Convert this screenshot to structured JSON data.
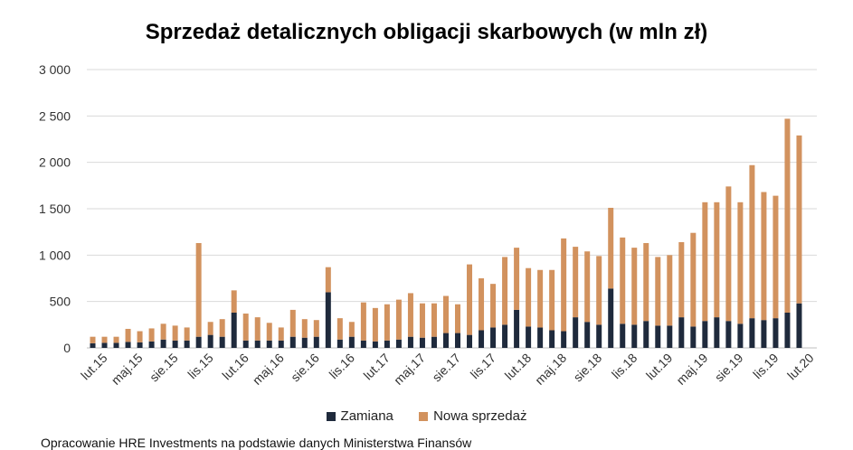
{
  "chart_data": {
    "type": "bar",
    "stacked": true,
    "title": "Sprzedaż detalicznych obligacji skarbowych (w mln zł)",
    "xlabel": "",
    "ylabel": "",
    "ylim": [
      0,
      3000
    ],
    "yticks": [
      0,
      500,
      1000,
      1500,
      2000,
      2500,
      3000
    ],
    "ytick_labels": [
      "0",
      "500",
      "1 000",
      "1 500",
      "2 000",
      "2 500",
      "3 000"
    ],
    "grid": true,
    "legend_position": "bottom",
    "categories": [
      "sty.15",
      "lut.15",
      "mar.15",
      "kwi.15",
      "maj.15",
      "cze.15",
      "lip.15",
      "sie.15",
      "wrz.15",
      "paź.15",
      "lis.15",
      "gru.15",
      "sty.16",
      "lut.16",
      "mar.16",
      "kwi.16",
      "maj.16",
      "cze.16",
      "lip.16",
      "sie.16",
      "wrz.16",
      "paź.16",
      "lis.16",
      "gru.16",
      "sty.17",
      "lut.17",
      "mar.17",
      "kwi.17",
      "maj.17",
      "cze.17",
      "lip.17",
      "sie.17",
      "wrz.17",
      "paź.17",
      "lis.17",
      "gru.17",
      "sty.18",
      "lut.18",
      "mar.18",
      "kwi.18",
      "maj.18",
      "cze.18",
      "lip.18",
      "sie.18",
      "wrz.18",
      "paź.18",
      "lis.18",
      "gru.18",
      "sty.19",
      "lut.19",
      "mar.19",
      "kwi.19",
      "maj.19",
      "cze.19",
      "lip.19",
      "sie.19",
      "wrz.19",
      "paź.19",
      "lis.19",
      "gru.19",
      "sty.20",
      "lut.20",
      "mar.20"
    ],
    "tick_labels": [
      {
        "index": 1,
        "label": "lut.15"
      },
      {
        "index": 4,
        "label": "maj.15"
      },
      {
        "index": 7,
        "label": "sie.15"
      },
      {
        "index": 10,
        "label": "lis.15"
      },
      {
        "index": 13,
        "label": "lut.16"
      },
      {
        "index": 16,
        "label": "maj.16"
      },
      {
        "index": 19,
        "label": "sie.16"
      },
      {
        "index": 22,
        "label": "lis.16"
      },
      {
        "index": 25,
        "label": "lut.17"
      },
      {
        "index": 28,
        "label": "maj.17"
      },
      {
        "index": 31,
        "label": "sie.17"
      },
      {
        "index": 34,
        "label": "lis.17"
      },
      {
        "index": 37,
        "label": "lut.18"
      },
      {
        "index": 40,
        "label": "maj.18"
      },
      {
        "index": 43,
        "label": "sie.18"
      },
      {
        "index": 46,
        "label": "lis.18"
      },
      {
        "index": 49,
        "label": "lut.19"
      },
      {
        "index": 52,
        "label": "maj.19"
      },
      {
        "index": 55,
        "label": "sie.19"
      },
      {
        "index": 58,
        "label": "lis.19"
      },
      {
        "index": 61,
        "label": "lut.20"
      }
    ],
    "series": [
      {
        "name": "Zamiana",
        "color": "#1f2a3c",
        "values": [
          50,
          55,
          55,
          65,
          60,
          70,
          90,
          80,
          80,
          120,
          140,
          120,
          380,
          80,
          80,
          80,
          80,
          120,
          110,
          120,
          600,
          90,
          120,
          80,
          70,
          80,
          90,
          120,
          110,
          120,
          160,
          160,
          140,
          190,
          220,
          250,
          410,
          230,
          220,
          190,
          180,
          330,
          280,
          250,
          640,
          260,
          250,
          290,
          240,
          240,
          330,
          230,
          290,
          330,
          290,
          260,
          320,
          300,
          320,
          380,
          480,
          0,
          0
        ]
      },
      {
        "name": "Nowa sprzedaż",
        "color": "#d2925e",
        "values": [
          70,
          65,
          65,
          140,
          120,
          140,
          170,
          160,
          140,
          1010,
          140,
          190,
          240,
          290,
          250,
          190,
          140,
          290,
          200,
          180,
          270,
          230,
          160,
          410,
          360,
          390,
          430,
          470,
          370,
          360,
          400,
          310,
          760,
          560,
          470,
          730,
          670,
          630,
          620,
          650,
          1000,
          760,
          760,
          740,
          870,
          930,
          830,
          840,
          740,
          760,
          810,
          1010,
          1280,
          1240,
          1450,
          1310,
          1650,
          1380,
          1320,
          2090,
          1810,
          0,
          0
        ]
      }
    ]
  },
  "legend": {
    "items": [
      {
        "label": "Zamiana",
        "color": "#1f2a3c"
      },
      {
        "label": "Nowa sprzedaż",
        "color": "#d2925e"
      }
    ]
  },
  "footnote": "Opracowanie HRE Investments na podstawie danych Ministerstwa Finansów"
}
